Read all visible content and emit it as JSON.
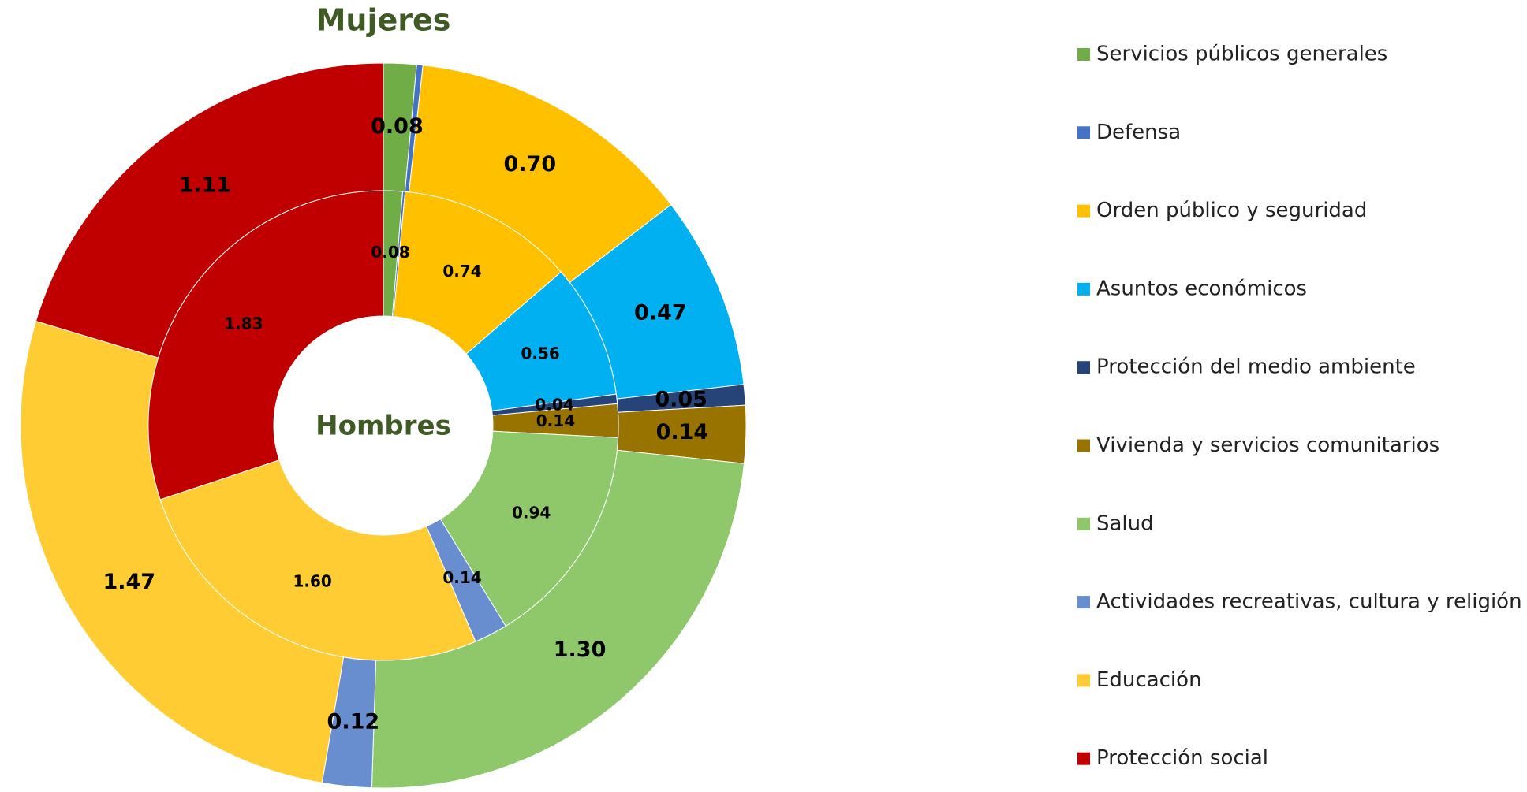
{
  "chart_data": {
    "type": "donut",
    "categories": [
      "Servicios públicos generales",
      "Defensa",
      "Orden público y seguridad",
      "Asuntos económicos",
      "Protección del medio ambiente",
      "Vivienda y servicios comunitarios",
      "Salud",
      "Actividades recreativas, cultura y religión",
      "Educación",
      "Protección social"
    ],
    "colors": [
      "#70ad47",
      "#4472c4",
      "#ffc000",
      "#00b0f0",
      "#264478",
      "#997300",
      "#8fc86a",
      "#698ed0",
      "#ffcd33",
      "#c00000"
    ],
    "series": [
      {
        "name": "Mujeres",
        "values": [
          0.08,
          0.015,
          0.7,
          0.47,
          0.05,
          0.14,
          1.3,
          0.12,
          1.47,
          1.11
        ],
        "value_labels": [
          "0.08",
          null,
          "0.70",
          "0.47",
          "0.05",
          "0.14",
          "1.30",
          "0.12",
          "1.47",
          "1.11"
        ]
      },
      {
        "name": "Hombres",
        "values": [
          0.08,
          0.01,
          0.74,
          0.56,
          0.04,
          0.14,
          0.94,
          0.14,
          1.6,
          1.83
        ],
        "value_labels": [
          "0.08",
          null,
          "0.74",
          "0.56",
          "0.04",
          "0.14",
          "0.94",
          "0.14",
          "1.60",
          "1.83"
        ]
      }
    ],
    "legend": "right"
  }
}
